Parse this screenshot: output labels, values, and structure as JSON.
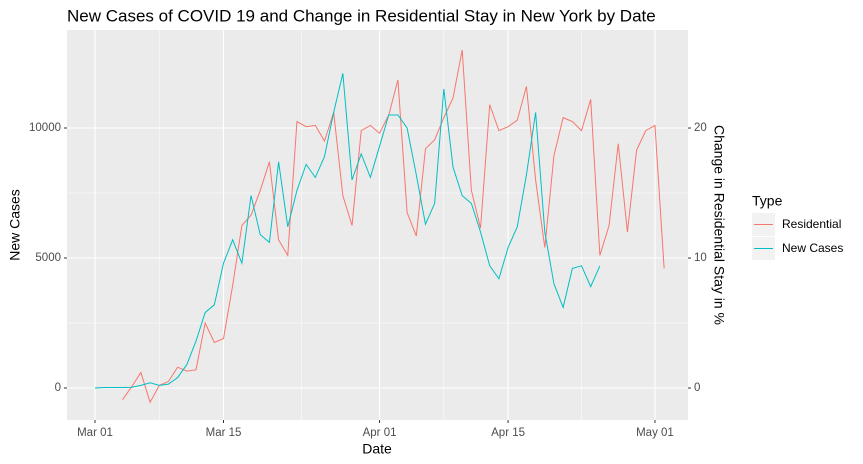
{
  "chart_data": {
    "type": "line",
    "title": "New Cases of COVID 19 and Change in Residential Stay in New York by Date",
    "x_label": "Date",
    "y_label": "New Cases",
    "y2_label": "Change in Residential Stay in %",
    "legend_title": "Type",
    "legend_position": "right",
    "grid": true,
    "minor_grid": true,
    "x": [
      0,
      1,
      2,
      3,
      4,
      5,
      6,
      7,
      8,
      9,
      10,
      11,
      12,
      13,
      14,
      15,
      16,
      17,
      18,
      19,
      20,
      21,
      22,
      23,
      24,
      25,
      26,
      27,
      28,
      29,
      30,
      31,
      32,
      33,
      34,
      35,
      36,
      37,
      38,
      39,
      40,
      41,
      42,
      43,
      44,
      45,
      46,
      47,
      48,
      49,
      50,
      51,
      52,
      53,
      54,
      55,
      56,
      57,
      58,
      59,
      60,
      61,
      62
    ],
    "xlim": [
      -3.05,
      64.6
    ],
    "xticks": [
      {
        "value": 0,
        "label": "Mar 01"
      },
      {
        "value": 14,
        "label": "Mar 15"
      },
      {
        "value": 31,
        "label": "Apr 01"
      },
      {
        "value": 45,
        "label": "Apr 15"
      },
      {
        "value": 61,
        "label": "May 01"
      }
    ],
    "ylim": [
      -1231,
      13769
    ],
    "yticks": [
      0,
      5000,
      10000
    ],
    "y2lim": [
      -2.46,
      27.54
    ],
    "y2ticks": [
      0,
      10,
      20
    ],
    "series": [
      {
        "name": "Residential",
        "color": "#F8766D",
        "axis": "y2",
        "values": [
          null,
          null,
          null,
          -0.9,
          0.1,
          1.2,
          -1.1,
          0.2,
          0.5,
          1.6,
          1.3,
          1.4,
          5.0,
          3.5,
          3.8,
          7.9,
          12.5,
          13.3,
          15.2,
          17.4,
          11.4,
          10.2,
          20.5,
          20.1,
          20.2,
          19.0,
          21.2,
          14.8,
          12.5,
          19.8,
          20.2,
          19.6,
          21.0,
          23.7,
          13.5,
          11.7,
          18.4,
          19.1,
          20.8,
          22.3,
          26.0,
          15.2,
          12.3,
          21.8,
          19.8,
          20.1,
          20.6,
          23.2,
          16.0,
          10.8,
          17.9,
          20.8,
          20.5,
          19.8,
          22.2,
          10.2,
          12.5,
          18.8,
          12.0,
          18.3,
          19.8,
          20.2,
          9.2
        ]
      },
      {
        "name": "New Cases",
        "color": "#00BFC4",
        "values": [
          0,
          20,
          20,
          20,
          30,
          100,
          200,
          100,
          150,
          400,
          900,
          1800,
          2900,
          3200,
          4800,
          5700,
          4800,
          7400,
          5900,
          5600,
          8700,
          6200,
          7600,
          8600,
          8100,
          8900,
          10600,
          12100,
          8000,
          9000,
          8100,
          9300,
          10500,
          10500,
          10000,
          8200,
          6300,
          7100,
          11500,
          8500,
          7400,
          7100,
          6000,
          4700,
          4200,
          5400,
          6200,
          8200,
          10600,
          6000,
          4000,
          3100,
          4600,
          4700,
          3900,
          4700,
          null,
          null,
          null,
          null,
          null,
          null,
          null
        ]
      }
    ]
  }
}
